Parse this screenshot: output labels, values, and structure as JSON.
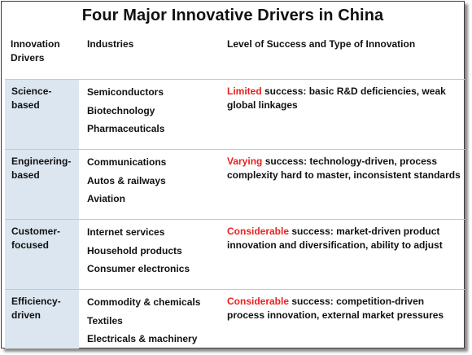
{
  "title": "Four Major Innovative Drivers in China",
  "headers": {
    "drivers": "Innovation Drivers",
    "industries": "Industries",
    "success": "Level of Success and Type of Innovation"
  },
  "accent_color": "#e8211d",
  "driver_fill_color": "#dce6f1",
  "rows": [
    {
      "driver": "Science-based",
      "industries": [
        "Semiconductors",
        "Biotechnology",
        "Pharmaceuticals"
      ],
      "level": "Limited",
      "description": " success: basic R&D deficiencies, weak global linkages"
    },
    {
      "driver": "Engineering-based",
      "industries": [
        "Communications",
        "Autos & railways",
        "Aviation"
      ],
      "level": "Varying",
      "description": " success: technology-driven, process complexity hard to master, inconsistent standards"
    },
    {
      "driver": "Customer-focused",
      "industries": [
        "Internet services",
        "Household products",
        "Consumer electronics"
      ],
      "level": "Considerable",
      "description": " success: market-driven product innovation and diversification, ability to adjust"
    },
    {
      "driver": "Efficiency-driven",
      "industries": [
        "Commodity & chemicals",
        "Textiles",
        "Electricals & machinery"
      ],
      "level": "Considerable",
      "description": " success: competition-driven process innovation, external market pressures"
    }
  ]
}
